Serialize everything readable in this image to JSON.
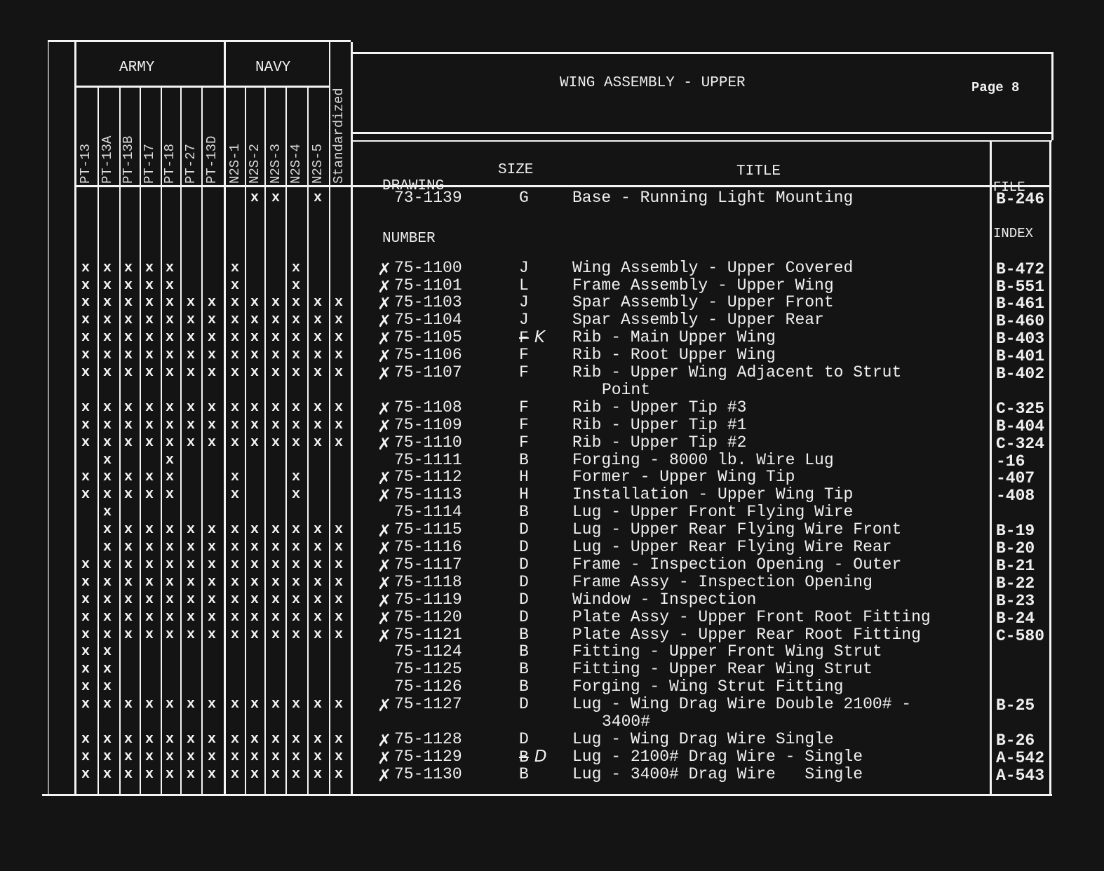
{
  "header": {
    "army_label": "ARMY",
    "navy_label": "NAVY",
    "models": [
      "PT-13",
      "PT-13A",
      "PT-13B",
      "PT-17",
      "PT-18",
      "PT-27",
      "PT-13D",
      "N2S-1",
      "N2S-2",
      "N2S-3",
      "N2S-4",
      "N2S-5",
      "Standardized"
    ],
    "title": "WING ASSEMBLY - UPPER",
    "page": "Page 8",
    "col_drawing_1": "DRAWING",
    "col_drawing_2": "NUMBER",
    "col_size": "SIZE",
    "col_title": "TITLE",
    "col_file_1": "FILE",
    "col_file_2": "INDEX"
  },
  "rows": [
    {
      "checked": false,
      "number": "73-1139",
      "size": "G",
      "title": "Base - Running Light Mounting",
      "title2": "",
      "file": "B-246",
      "marks": [
        0,
        0,
        0,
        0,
        0,
        0,
        0,
        0,
        1,
        1,
        0,
        1,
        0
      ]
    },
    {
      "checked": true,
      "number": "75-1100",
      "size": "J",
      "title": "Wing Assembly - Upper Covered",
      "title2": "",
      "file": "B-472",
      "marks": [
        1,
        1,
        1,
        1,
        1,
        0,
        0,
        1,
        0,
        0,
        1,
        0,
        0
      ]
    },
    {
      "checked": true,
      "number": "75-1101",
      "size": "L",
      "title": "Frame Assembly - Upper Wing",
      "title2": "",
      "file": "B-551",
      "marks": [
        1,
        1,
        1,
        1,
        1,
        0,
        0,
        1,
        0,
        0,
        1,
        0,
        0
      ]
    },
    {
      "checked": true,
      "number": "75-1103",
      "size": "J",
      "title": "Spar Assembly - Upper Front",
      "title2": "",
      "file": "B-461",
      "marks": [
        1,
        1,
        1,
        1,
        1,
        1,
        1,
        1,
        1,
        1,
        1,
        1,
        1
      ]
    },
    {
      "checked": true,
      "number": "75-1104",
      "size": "J",
      "title": "Spar Assembly - Upper Rear",
      "title2": "",
      "file": "B-460",
      "marks": [
        1,
        1,
        1,
        1,
        1,
        1,
        1,
        1,
        1,
        1,
        1,
        1,
        1
      ]
    },
    {
      "checked": true,
      "number": "75-1105",
      "size": "F",
      "size_correction": "K",
      "title": "Rib - Main Upper Wing",
      "title2": "",
      "file": "B-403",
      "marks": [
        1,
        1,
        1,
        1,
        1,
        1,
        1,
        1,
        1,
        1,
        1,
        1,
        1
      ]
    },
    {
      "checked": true,
      "number": "75-1106",
      "size": "F",
      "title": "Rib - Root Upper Wing",
      "title2": "",
      "file": "B-401",
      "marks": [
        1,
        1,
        1,
        1,
        1,
        1,
        1,
        1,
        1,
        1,
        1,
        1,
        1
      ]
    },
    {
      "checked": true,
      "number": "75-1107",
      "size": "F",
      "title": "Rib - Upper Wing Adjacent to Strut",
      "title2": "Point",
      "file": "B-402",
      "marks": [
        1,
        1,
        1,
        1,
        1,
        1,
        1,
        1,
        1,
        1,
        1,
        1,
        1
      ]
    },
    {
      "checked": true,
      "number": "75-1108",
      "size": "F",
      "title": "Rib - Upper Tip #3",
      "title2": "",
      "file": "C-325",
      "marks": [
        1,
        1,
        1,
        1,
        1,
        1,
        1,
        1,
        1,
        1,
        1,
        1,
        1
      ]
    },
    {
      "checked": true,
      "number": "75-1109",
      "size": "F",
      "title": "Rib - Upper Tip #1",
      "title2": "",
      "file": "B-404",
      "marks": [
        1,
        1,
        1,
        1,
        1,
        1,
        1,
        1,
        1,
        1,
        1,
        1,
        1
      ]
    },
    {
      "checked": true,
      "number": "75-1110",
      "size": "F",
      "title": "Rib - Upper Tip #2",
      "title2": "",
      "file": "C-324",
      "marks": [
        1,
        1,
        1,
        1,
        1,
        1,
        1,
        1,
        1,
        1,
        1,
        1,
        1
      ]
    },
    {
      "checked": false,
      "number": "75-1111",
      "size": "B",
      "title": "Forging - 8000 lb. Wire Lug",
      "title2": "",
      "file": "-16",
      "marks": [
        0,
        1,
        0,
        0,
        1,
        0,
        0,
        0,
        0,
        0,
        0,
        0,
        0
      ]
    },
    {
      "checked": true,
      "number": "75-1112",
      "size": "H",
      "title": "Former - Upper Wing Tip",
      "title2": "",
      "file": "-407",
      "marks": [
        1,
        1,
        1,
        1,
        1,
        0,
        0,
        1,
        0,
        0,
        1,
        0,
        0
      ]
    },
    {
      "checked": true,
      "number": "75-1113",
      "size": "H",
      "title": "Installation - Upper Wing Tip",
      "title2": "",
      "file": "-408",
      "marks": [
        1,
        1,
        1,
        1,
        1,
        0,
        0,
        1,
        0,
        0,
        1,
        0,
        0
      ]
    },
    {
      "checked": false,
      "number": "75-1114",
      "size": "B",
      "title": "Lug - Upper Front Flying Wire",
      "title2": "",
      "file": "",
      "marks": [
        0,
        1,
        0,
        0,
        0,
        0,
        0,
        0,
        0,
        0,
        0,
        0,
        0
      ]
    },
    {
      "checked": true,
      "number": "75-1115",
      "size": "D",
      "title": "Lug - Upper Rear Flying Wire Front",
      "title2": "",
      "file": "B-19",
      "marks": [
        0,
        1,
        1,
        1,
        1,
        1,
        1,
        1,
        1,
        1,
        1,
        1,
        1
      ]
    },
    {
      "checked": true,
      "number": "75-1116",
      "size": "D",
      "title": "Lug - Upper Rear Flying Wire Rear",
      "title2": "",
      "file": "B-20",
      "marks": [
        0,
        1,
        1,
        1,
        1,
        1,
        1,
        1,
        1,
        1,
        1,
        1,
        1
      ]
    },
    {
      "checked": true,
      "number": "75-1117",
      "size": "D",
      "title": "Frame - Inspection Opening - Outer",
      "title2": "",
      "file": "B-21",
      "marks": [
        1,
        1,
        1,
        1,
        1,
        1,
        1,
        1,
        1,
        1,
        1,
        1,
        1
      ]
    },
    {
      "checked": true,
      "number": "75-1118",
      "size": "D",
      "title": "Frame Assy - Inspection Opening",
      "title2": "",
      "file": "B-22",
      "marks": [
        1,
        1,
        1,
        1,
        1,
        1,
        1,
        1,
        1,
        1,
        1,
        1,
        1
      ]
    },
    {
      "checked": true,
      "number": "75-1119",
      "size": "D",
      "title": "Window - Inspection",
      "title2": "",
      "file": "B-23",
      "marks": [
        1,
        1,
        1,
        1,
        1,
        1,
        1,
        1,
        1,
        1,
        1,
        1,
        1
      ]
    },
    {
      "checked": true,
      "number": "75-1120",
      "size": "D",
      "title": "Plate Assy - Upper Front Root Fitting",
      "title2": "",
      "file": "B-24",
      "marks": [
        1,
        1,
        1,
        1,
        1,
        1,
        1,
        1,
        1,
        1,
        1,
        1,
        1
      ]
    },
    {
      "checked": true,
      "number": "75-1121",
      "size": "B",
      "title": "Plate Assy - Upper Rear Root Fitting",
      "title2": "",
      "file": "C-580",
      "marks": [
        1,
        1,
        1,
        1,
        1,
        1,
        1,
        1,
        1,
        1,
        1,
        1,
        1
      ]
    },
    {
      "checked": false,
      "number": "75-1124",
      "size": "B",
      "title": "Fitting - Upper Front Wing Strut",
      "title2": "",
      "file": "",
      "marks": [
        1,
        1,
        0,
        0,
        0,
        0,
        0,
        0,
        0,
        0,
        0,
        0,
        0
      ]
    },
    {
      "checked": false,
      "number": "75-1125",
      "size": "B",
      "title": "Fitting - Upper Rear Wing Strut",
      "title2": "",
      "file": "",
      "marks": [
        1,
        1,
        0,
        0,
        0,
        0,
        0,
        0,
        0,
        0,
        0,
        0,
        0
      ]
    },
    {
      "checked": false,
      "number": "75-1126",
      "size": "B",
      "title": "Forging - Wing Strut Fitting",
      "title2": "",
      "file": "",
      "marks": [
        1,
        1,
        0,
        0,
        0,
        0,
        0,
        0,
        0,
        0,
        0,
        0,
        0
      ]
    },
    {
      "checked": true,
      "number": "75-1127",
      "size": "D",
      "title": "Lug - Wing Drag Wire Double 2100# -",
      "title2": "3400#",
      "file": "B-25",
      "marks": [
        1,
        1,
        1,
        1,
        1,
        1,
        1,
        1,
        1,
        1,
        1,
        1,
        1
      ]
    },
    {
      "checked": true,
      "number": "75-1128",
      "size": "D",
      "title": "Lug - Wing Drag Wire Single",
      "title2": "",
      "file": "B-26",
      "marks": [
        1,
        1,
        1,
        1,
        1,
        1,
        1,
        1,
        1,
        1,
        1,
        1,
        1
      ]
    },
    {
      "checked": true,
      "number": "75-1129",
      "size": "B",
      "size_correction": "D",
      "title": "Lug - 2100# Drag Wire - Single",
      "title2": "",
      "file": "A-542",
      "marks": [
        1,
        1,
        1,
        1,
        1,
        1,
        1,
        1,
        1,
        1,
        1,
        1,
        1
      ]
    },
    {
      "checked": true,
      "number": "75-1130",
      "size": "B",
      "title": "Lug - 3400# Drag Wire   Single",
      "title2": "",
      "file": "A-543",
      "marks": [
        1,
        1,
        1,
        1,
        1,
        1,
        1,
        1,
        1,
        1,
        1,
        1,
        1
      ]
    }
  ],
  "mark_glyph": "x",
  "check_glyph": "✗"
}
